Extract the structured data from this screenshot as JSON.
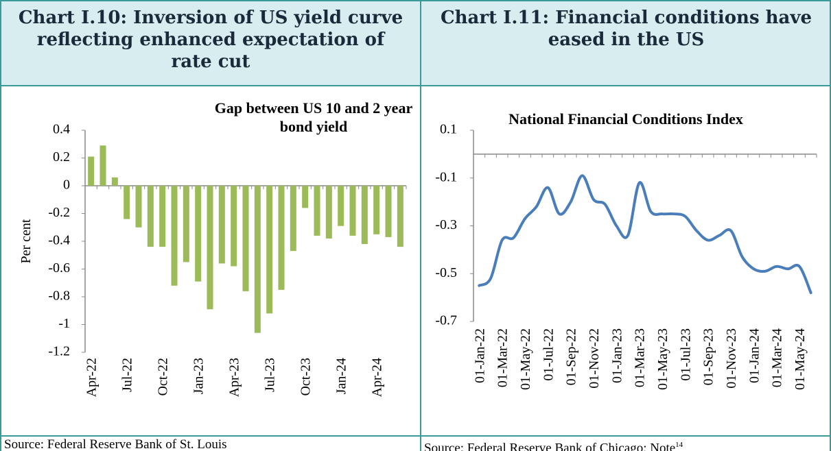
{
  "headers": [
    "Chart I.10: Inversion of US yield curve reflecting enhanced expectation of rate cut",
    "Chart I.11: Financial conditions have eased in the US"
  ],
  "sources": [
    "Source: Federal Reserve Bank of St. Louis",
    "Source: Federal Reserve Bank of Chicago; Note"
  ],
  "note_ref": "14",
  "chart_data": [
    {
      "type": "bar",
      "title": "Gap between US 10 and 2 year bond yield",
      "y_label": "Per cent",
      "color": "#9bbb59",
      "categories": [
        "Apr-22",
        null,
        null,
        "Jul-22",
        null,
        null,
        "Oct-22",
        null,
        null,
        "Jan-23",
        null,
        null,
        "Apr-23",
        null,
        null,
        "Jul-23",
        null,
        null,
        "Oct-23",
        null,
        null,
        "Jan-24",
        null,
        null,
        "Apr-24",
        null,
        null
      ],
      "values": [
        0.21,
        0.29,
        0.06,
        -0.24,
        -0.3,
        -0.44,
        -0.44,
        -0.72,
        -0.55,
        -0.69,
        -0.89,
        -0.56,
        -0.58,
        -0.76,
        -1.06,
        -0.92,
        -0.75,
        -0.47,
        -0.16,
        -0.36,
        -0.38,
        -0.29,
        -0.36,
        -0.42,
        -0.35,
        -0.37,
        -0.44
      ],
      "ylim": [
        -1.2,
        0.4
      ],
      "yticks": [
        0.4,
        0.2,
        0,
        -0.2,
        -0.4,
        -0.6,
        -0.8,
        -1,
        -1.2
      ]
    },
    {
      "type": "line",
      "title": "National Financial Conditions Index",
      "color": "#4a7ebb",
      "categories": [
        "01-Jan-22",
        null,
        "01-Mar-22",
        null,
        "01-May-22",
        null,
        "01-Jul-22",
        null,
        "01-Sep-22",
        null,
        "01-Nov-22",
        null,
        "01-Jan-23",
        null,
        "01-Mar-23",
        null,
        "01-May-23",
        null,
        "01-Jul-23",
        null,
        "01-Sep-23",
        null,
        "01-Nov-23",
        null,
        "01-Jan-24",
        null,
        "01-Mar-24",
        null,
        "01-May-24",
        null
      ],
      "values": [
        -0.55,
        -0.52,
        -0.36,
        -0.35,
        -0.27,
        -0.22,
        -0.14,
        -0.25,
        -0.2,
        -0.09,
        -0.19,
        -0.21,
        -0.3,
        -0.34,
        -0.12,
        -0.24,
        -0.25,
        -0.25,
        -0.26,
        -0.32,
        -0.36,
        -0.34,
        -0.32,
        -0.43,
        -0.48,
        -0.49,
        -0.47,
        -0.48,
        -0.47,
        -0.58
      ],
      "ylim": [
        -0.7,
        0.1
      ],
      "yticks": [
        0.1,
        -0.1,
        -0.3,
        -0.5,
        -0.7
      ]
    }
  ]
}
